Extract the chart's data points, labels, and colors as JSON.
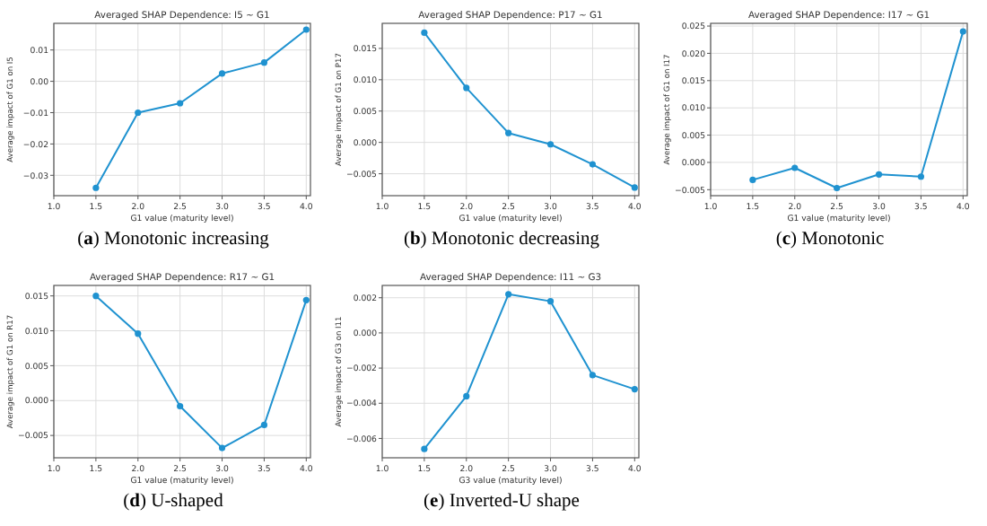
{
  "chart_data": [
    {
      "type": "line",
      "title": "Averaged SHAP Dependence: I5 ~ G1",
      "xlabel": "G1 value (maturity level)",
      "ylabel": "Average impact of G1 on I5",
      "x": [
        1.5,
        2.0,
        2.5,
        3.0,
        3.5,
        4.0
      ],
      "series": [
        {
          "color": "#1f92d0",
          "values": [
            -0.034,
            -0.01,
            -0.007,
            0.0025,
            0.006,
            0.0165
          ]
        }
      ],
      "xlim": [
        1.0,
        4.05
      ],
      "xticks": [
        {
          "value": 1.0,
          "label": "1.0"
        },
        1.5,
        {
          "value": 2.0,
          "label": "2.0"
        },
        2.5,
        {
          "value": 3.0,
          "label": "3.0"
        },
        3.5,
        {
          "value": 4.0,
          "label": "4.0"
        }
      ],
      "ylim": [
        -0.0365,
        0.0185
      ],
      "yticks": [
        {
          "value": -0.03,
          "label": "−0.03"
        },
        {
          "value": -0.02,
          "label": "−0.02"
        },
        {
          "value": -0.01,
          "label": "−0.01"
        },
        {
          "value": 0,
          "label": "0.00"
        },
        0.01
      ],
      "grid": true,
      "marker": "circle",
      "line_style": "solid",
      "annotations": [
        "(a) Monotonic increasing"
      ]
    },
    {
      "type": "line",
      "title": "Averaged SHAP Dependence: P17 ~ G1",
      "xlabel": "G1 value (maturity level)",
      "ylabel": "Average impact of G1 on P17",
      "x": [
        1.5,
        2.0,
        2.5,
        3.0,
        3.5,
        4.0
      ],
      "series": [
        {
          "color": "#1f92d0",
          "values": [
            0.0175,
            0.0087,
            0.0015,
            -0.0003,
            -0.0035,
            -0.0072
          ]
        }
      ],
      "xlim": [
        1.0,
        4.05
      ],
      "xticks": [
        {
          "value": 1.0,
          "label": "1.0"
        },
        1.5,
        {
          "value": 2.0,
          "label": "2.0"
        },
        2.5,
        {
          "value": 3.0,
          "label": "3.0"
        },
        3.5,
        {
          "value": 4.0,
          "label": "4.0"
        }
      ],
      "ylim": [
        -0.0085,
        0.019
      ],
      "yticks": [
        {
          "value": -0.005,
          "label": "−0.005"
        },
        {
          "value": 0,
          "label": "0.000"
        },
        0.005,
        {
          "value": 0.01,
          "label": "0.010"
        },
        0.015
      ],
      "grid": true,
      "marker": "circle",
      "line_style": "solid",
      "annotations": [
        "(b) Monotonic decreasing"
      ]
    },
    {
      "type": "line",
      "title": "Averaged SHAP Dependence: I17 ~ G1",
      "xlabel": "G1 value (maturity level)",
      "ylabel": "Average impact of G1 on I17",
      "x": [
        1.5,
        2.0,
        2.5,
        3.0,
        3.5,
        4.0
      ],
      "series": [
        {
          "color": "#1f92d0",
          "values": [
            -0.0032,
            -0.001,
            -0.0047,
            -0.0022,
            -0.0026,
            0.024
          ]
        }
      ],
      "xlim": [
        1.0,
        4.05
      ],
      "xticks": [
        {
          "value": 1.0,
          "label": "1.0"
        },
        1.5,
        {
          "value": 2.0,
          "label": "2.0"
        },
        2.5,
        {
          "value": 3.0,
          "label": "3.0"
        },
        3.5,
        {
          "value": 4.0,
          "label": "4.0"
        }
      ],
      "ylim": [
        -0.0061,
        0.0255
      ],
      "yticks": [
        {
          "value": -0.005,
          "label": "−0.005"
        },
        {
          "value": 0,
          "label": "0.000"
        },
        0.005,
        {
          "value": 0.01,
          "label": "0.010"
        },
        0.015,
        {
          "value": 0.02,
          "label": "0.020"
        },
        0.025
      ],
      "grid": true,
      "marker": "circle",
      "line_style": "solid",
      "annotations": [
        "(c) Monotonic"
      ]
    },
    {
      "type": "line",
      "title": "Averaged SHAP Dependence: R17 ~ G1",
      "xlabel": "G1 value (maturity level)",
      "ylabel": "Average impact of G1 on R17",
      "x": [
        1.5,
        2.0,
        2.5,
        3.0,
        3.5,
        4.0
      ],
      "series": [
        {
          "color": "#1f92d0",
          "values": [
            0.015,
            0.0096,
            -0.0008,
            -0.0068,
            -0.0035,
            0.0144
          ]
        }
      ],
      "xlim": [
        1.0,
        4.05
      ],
      "xticks": [
        {
          "value": 1.0,
          "label": "1.0"
        },
        1.5,
        {
          "value": 2.0,
          "label": "2.0"
        },
        2.5,
        {
          "value": 3.0,
          "label": "3.0"
        },
        3.5,
        {
          "value": 4.0,
          "label": "4.0"
        }
      ],
      "ylim": [
        -0.0082,
        0.0165
      ],
      "yticks": [
        {
          "value": -0.005,
          "label": "−0.005"
        },
        {
          "value": 0,
          "label": "0.000"
        },
        0.005,
        {
          "value": 0.01,
          "label": "0.010"
        },
        0.015
      ],
      "grid": true,
      "marker": "circle",
      "line_style": "solid",
      "annotations": [
        "(d) U-shaped"
      ]
    },
    {
      "type": "line",
      "title": "Averaged SHAP Dependence: I11 ~ G3",
      "xlabel": "G3 value (maturity level)",
      "ylabel": "Average impact of G3 on I11",
      "x": [
        1.5,
        2.0,
        2.5,
        3.0,
        3.5,
        4.0
      ],
      "series": [
        {
          "color": "#1f92d0",
          "values": [
            -0.0066,
            -0.0036,
            0.0022,
            0.0018,
            -0.0024,
            -0.0032
          ]
        }
      ],
      "xlim": [
        1.0,
        4.05
      ],
      "xticks": [
        {
          "value": 1.0,
          "label": "1.0"
        },
        1.5,
        {
          "value": 2.0,
          "label": "2.0"
        },
        2.5,
        {
          "value": 3.0,
          "label": "3.0"
        },
        3.5,
        {
          "value": 4.0,
          "label": "4.0"
        }
      ],
      "ylim": [
        -0.0071,
        0.0027
      ],
      "yticks": [
        {
          "value": -0.006,
          "label": "−0.006"
        },
        {
          "value": -0.004,
          "label": "−0.004"
        },
        {
          "value": -0.002,
          "label": "−0.002"
        },
        {
          "value": 0,
          "label": "0.000"
        },
        0.002
      ],
      "grid": true,
      "marker": "circle",
      "line_style": "solid",
      "annotations": [
        "(e) Inverted-U shape"
      ]
    }
  ]
}
